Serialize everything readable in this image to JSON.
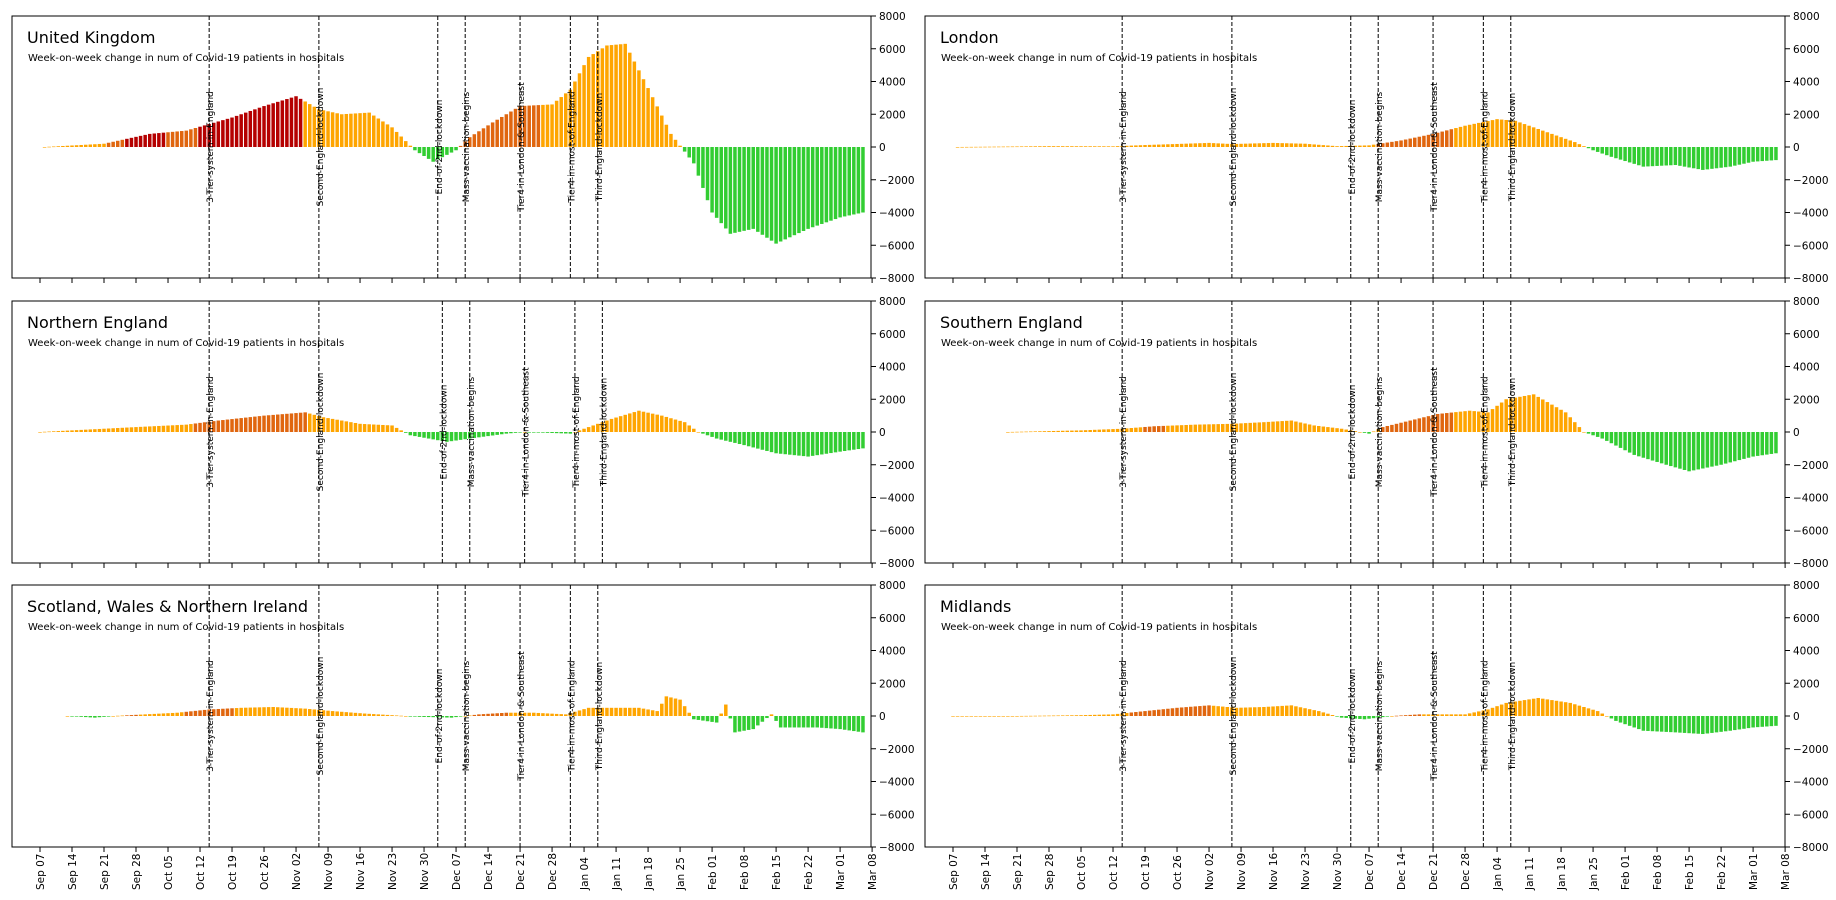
{
  "colors": {
    "rising_fast": "#E0660F",
    "rising": "#FFA500",
    "rising_peak": "#B50000",
    "falling": "#32CD32",
    "event_line": "#000000",
    "axis": "#000000"
  },
  "x_tick_labels": [
    "Sep 07",
    "Sep 14",
    "Sep 21",
    "Sep 28",
    "Oct 05",
    "Oct 12",
    "Oct 19",
    "Oct 26",
    "Nov 02",
    "Nov 09",
    "Nov 16",
    "Nov 23",
    "Nov 30",
    "Dec 07",
    "Dec 14",
    "Dec 21",
    "Dec 28",
    "Jan 04",
    "Jan 11",
    "Jan 18",
    "Jan 25",
    "Feb 01",
    "Feb 08",
    "Feb 15",
    "Feb 22",
    "Mar 01",
    "Mar 08"
  ],
  "y_tick_labels": [
    "8000",
    "6000",
    "4000",
    "2000",
    "0",
    "−2000",
    "−4000",
    "−6000",
    "−8000"
  ],
  "chart_data": [
    {
      "type": "bar",
      "title": "United Kingdom",
      "subtitle": "Week-on-week change in num of Covid-19 patients in hospitals",
      "ylim": [
        -8000,
        8000
      ],
      "x_start": "Sep 07",
      "knots": [
        [
          "Sep 08",
          0
        ],
        [
          "Sep 21",
          200
        ],
        [
          "Oct 01",
          800
        ],
        [
          "Oct 09",
          1000
        ],
        [
          "Oct 14",
          1400
        ],
        [
          "Oct 19",
          1800
        ],
        [
          "Oct 26",
          2500
        ],
        [
          "Nov 02",
          3100
        ],
        [
          "Nov 07",
          2300
        ],
        [
          "Nov 12",
          2000
        ],
        [
          "Nov 18",
          2100
        ],
        [
          "Nov 23",
          1200
        ],
        [
          "Nov 28",
          -200
        ],
        [
          "Dec 02",
          -900
        ],
        [
          "Dec 07",
          -200
        ],
        [
          "Dec 10",
          600
        ],
        [
          "Dec 15",
          1500
        ],
        [
          "Dec 21",
          2500
        ],
        [
          "Dec 28",
          2600
        ],
        [
          "Jan 01",
          3500
        ],
        [
          "Jan 05",
          5500
        ],
        [
          "Jan 09",
          6200
        ],
        [
          "Jan 13",
          6300
        ],
        [
          "Jan 18",
          3600
        ],
        [
          "Jan 23",
          800
        ],
        [
          "Jan 28",
          -1000
        ],
        [
          "Feb 01",
          -4000
        ],
        [
          "Feb 05",
          -5300
        ],
        [
          "Feb 10",
          -5000
        ],
        [
          "Feb 15",
          -5900
        ],
        [
          "Feb 22",
          -5000
        ],
        [
          "Mar 01",
          -4300
        ],
        [
          "Mar 06",
          -4000
        ]
      ],
      "events": [
        {
          "label": "3-Tier-system-in-England",
          "date": "Oct 14"
        },
        {
          "label": "Second-England-lockdown",
          "date": "Nov 07"
        },
        {
          "label": "End-of-2nd-lockdown",
          "date": "Dec 03"
        },
        {
          "label": "Mass-vaccination-begins",
          "date": "Dec 09"
        },
        {
          "label": "Tier4-in-London-&-Southeast",
          "date": "Dec 21"
        },
        {
          "label": "Tier4-in-most-of-England",
          "date": "Jan 01"
        },
        {
          "label": "Third-England-lockdown",
          "date": "Jan 07"
        }
      ]
    },
    {
      "type": "bar",
      "title": "London",
      "subtitle": "Week-on-week change in num of Covid-19 patients in hospitals",
      "ylim": [
        -8000,
        8000
      ],
      "x_start": "Sep 07",
      "knots": [
        [
          "Sep 08",
          0
        ],
        [
          "Sep 28",
          50
        ],
        [
          "Oct 12",
          40
        ],
        [
          "Oct 19",
          120
        ],
        [
          "Nov 02",
          250
        ],
        [
          "Nov 07",
          180
        ],
        [
          "Nov 16",
          250
        ],
        [
          "Nov 23",
          200
        ],
        [
          "Nov 30",
          50
        ],
        [
          "Dec 07",
          100
        ],
        [
          "Dec 14",
          400
        ],
        [
          "Dec 21",
          800
        ],
        [
          "Dec 28",
          1300
        ],
        [
          "Jan 04",
          1700
        ],
        [
          "Jan 08",
          1600
        ],
        [
          "Jan 14",
          1000
        ],
        [
          "Jan 21",
          300
        ],
        [
          "Jan 25",
          -200
        ],
        [
          "Jan 29",
          -600
        ],
        [
          "Feb 05",
          -1200
        ],
        [
          "Feb 12",
          -1100
        ],
        [
          "Feb 18",
          -1400
        ],
        [
          "Feb 24",
          -1200
        ],
        [
          "Mar 01",
          -900
        ],
        [
          "Mar 06",
          -800
        ]
      ],
      "events": [
        {
          "label": "3-Tier-system-in-England",
          "date": "Oct 14"
        },
        {
          "label": "Second-England-lockdown",
          "date": "Nov 07"
        },
        {
          "label": "End-of-2nd-lockdown",
          "date": "Dec 03"
        },
        {
          "label": "Mass-vaccination-begins",
          "date": "Dec 09"
        },
        {
          "label": "Tier4-in-London-&-Southeast",
          "date": "Dec 21"
        },
        {
          "label": "Tier4-in-most-of-England",
          "date": "Jan 01"
        },
        {
          "label": "Third-England-lockdown",
          "date": "Jan 07"
        }
      ]
    },
    {
      "type": "bar",
      "title": "Northern England",
      "subtitle": "Week-on-week change in num of Covid-19 patients in hospitals",
      "ylim": [
        -8000,
        8000
      ],
      "x_start": "Sep 07",
      "knots": [
        [
          "Sep 07",
          0
        ],
        [
          "Sep 21",
          200
        ],
        [
          "Sep 28",
          300
        ],
        [
          "Oct 09",
          450
        ],
        [
          "Oct 16",
          700
        ],
        [
          "Oct 26",
          1000
        ],
        [
          "Nov 04",
          1200
        ],
        [
          "Nov 08",
          900
        ],
        [
          "Nov 16",
          500
        ],
        [
          "Nov 23",
          400
        ],
        [
          "Nov 27",
          -200
        ],
        [
          "Dec 01",
          -400
        ],
        [
          "Dec 05",
          -600
        ],
        [
          "Dec 10",
          -400
        ],
        [
          "Dec 18",
          -100
        ],
        [
          "Dec 22",
          0
        ],
        [
          "Jan 01",
          -100
        ],
        [
          "Jan 05",
          300
        ],
        [
          "Jan 10",
          800
        ],
        [
          "Jan 16",
          1300
        ],
        [
          "Jan 21",
          1000
        ],
        [
          "Jan 26",
          600
        ],
        [
          "Jan 29",
          0
        ],
        [
          "Feb 02",
          -400
        ],
        [
          "Feb 08",
          -800
        ],
        [
          "Feb 15",
          -1300
        ],
        [
          "Feb 22",
          -1500
        ],
        [
          "Mar 01",
          -1200
        ],
        [
          "Mar 06",
          -1000
        ]
      ],
      "events": [
        {
          "label": "3-Tier-system-in-England",
          "date": "Oct 14"
        },
        {
          "label": "Second-England-lockdown",
          "date": "Nov 07"
        },
        {
          "label": "End-of-2nd-lockdown",
          "date": "Dec 04"
        },
        {
          "label": "Mass-vaccination-begins",
          "date": "Dec 10"
        },
        {
          "label": "Tier4-in-London-&-Southeast",
          "date": "Dec 22"
        },
        {
          "label": "Tier4-in-most-of-England",
          "date": "Jan 02"
        },
        {
          "label": "Third-England-lockdown",
          "date": "Jan 08"
        }
      ]
    },
    {
      "type": "bar",
      "title": "Southern England",
      "subtitle": "Week-on-week change in num of Covid-19 patients in hospitals",
      "ylim": [
        -8000,
        8000
      ],
      "x_start": "Sep 07",
      "knots": [
        [
          "Sep 19",
          0
        ],
        [
          "Oct 05",
          100
        ],
        [
          "Oct 14",
          200
        ],
        [
          "Oct 21",
          350
        ],
        [
          "Oct 30",
          450
        ],
        [
          "Nov 07",
          500
        ],
        [
          "Nov 14",
          600
        ],
        [
          "Nov 20",
          700
        ],
        [
          "Nov 25",
          400
        ],
        [
          "Dec 01",
          200
        ],
        [
          "Dec 07",
          -100
        ],
        [
          "Dec 10",
          300
        ],
        [
          "Dec 16",
          700
        ],
        [
          "Dec 22",
          1100
        ],
        [
          "Dec 29",
          1300
        ],
        [
          "Jan 02",
          1200
        ],
        [
          "Jan 06",
          2000
        ],
        [
          "Jan 12",
          2300
        ],
        [
          "Jan 19",
          1200
        ],
        [
          "Jan 23",
          0
        ],
        [
          "Jan 27",
          -400
        ],
        [
          "Feb 03",
          -1400
        ],
        [
          "Feb 10",
          -2000
        ],
        [
          "Feb 15",
          -2400
        ],
        [
          "Feb 22",
          -2000
        ],
        [
          "Mar 01",
          -1500
        ],
        [
          "Mar 06",
          -1300
        ]
      ],
      "events": [
        {
          "label": "3-Tier-system-in-England",
          "date": "Oct 14"
        },
        {
          "label": "Second-England-lockdown",
          "date": "Nov 07"
        },
        {
          "label": "End-of-2nd-lockdown",
          "date": "Dec 03"
        },
        {
          "label": "Mass-vaccination-begins",
          "date": "Dec 09"
        },
        {
          "label": "Tier4-in-London-&-Southeast",
          "date": "Dec 21"
        },
        {
          "label": "Tier4-in-most-of-England",
          "date": "Jan 01"
        },
        {
          "label": "Third-England-lockdown",
          "date": "Jan 07"
        }
      ]
    },
    {
      "type": "bar",
      "title": "Scotland, Wales & Northern Ireland",
      "subtitle": "Week-on-week change in num of Covid-19 patients in hospitals",
      "ylim": [
        -8000,
        8000
      ],
      "x_start": "Sep 07",
      "knots": [
        [
          "Sep 13",
          0
        ],
        [
          "Sep 19",
          -100
        ],
        [
          "Sep 23",
          0
        ],
        [
          "Sep 30",
          100
        ],
        [
          "Oct 07",
          200
        ],
        [
          "Oct 14",
          400
        ],
        [
          "Oct 21",
          500
        ],
        [
          "Oct 28",
          550
        ],
        [
          "Nov 04",
          450
        ],
        [
          "Nov 10",
          300
        ],
        [
          "Nov 17",
          150
        ],
        [
          "Nov 23",
          50
        ],
        [
          "Nov 29",
          -50
        ],
        [
          "Dec 06",
          -100
        ],
        [
          "Dec 12",
          100
        ],
        [
          "Dec 18",
          200
        ],
        [
          "Dec 24",
          200
        ],
        [
          "Dec 31",
          100
        ],
        [
          "Jan 05",
          500
        ],
        [
          "Jan 11",
          500
        ],
        [
          "Jan 16",
          500
        ],
        [
          "Jan 20",
          300
        ],
        [
          "Jan 22",
          1200
        ],
        [
          "Jan 25",
          1000
        ],
        [
          "Jan 28",
          -200
        ],
        [
          "Feb 02",
          -400
        ],
        [
          "Feb 04",
          700
        ],
        [
          "Feb 06",
          -1000
        ],
        [
          "Feb 10",
          -800
        ],
        [
          "Feb 14",
          100
        ],
        [
          "Feb 16",
          -700
        ],
        [
          "Feb 24",
          -700
        ],
        [
          "Mar 01",
          -800
        ],
        [
          "Mar 06",
          -1000
        ]
      ],
      "events": [
        {
          "label": "3-Tier-system-in-England",
          "date": "Oct 14"
        },
        {
          "label": "Second-England-lockdown",
          "date": "Nov 07"
        },
        {
          "label": "End-of-2nd-lockdown",
          "date": "Dec 03"
        },
        {
          "label": "Mass-vaccination-begins",
          "date": "Dec 09"
        },
        {
          "label": "Tier4-in-London-&-Southeast",
          "date": "Dec 21"
        },
        {
          "label": "Tier4-in-most-of-England",
          "date": "Jan 01"
        },
        {
          "label": "Third-England-lockdown",
          "date": "Jan 07"
        }
      ]
    },
    {
      "type": "bar",
      "title": "Midlands",
      "subtitle": "Week-on-week change in num of Covid-19 patients in hospitals",
      "ylim": [
        -8000,
        8000
      ],
      "x_start": "Sep 07",
      "knots": [
        [
          "Sep 07",
          0
        ],
        [
          "Sep 13",
          0
        ],
        [
          "Sep 21",
          0
        ],
        [
          "Oct 05",
          50
        ],
        [
          "Oct 12",
          100
        ],
        [
          "Oct 19",
          300
        ],
        [
          "Oct 26",
          500
        ],
        [
          "Nov 02",
          650
        ],
        [
          "Nov 08",
          500
        ],
        [
          "Nov 14",
          550
        ],
        [
          "Nov 20",
          650
        ],
        [
          "Nov 26",
          300
        ],
        [
          "Dec 01",
          -100
        ],
        [
          "Dec 06",
          -200
        ],
        [
          "Dec 12",
          0
        ],
        [
          "Dec 18",
          100
        ],
        [
          "Dec 28",
          100
        ],
        [
          "Jan 02",
          400
        ],
        [
          "Jan 06",
          800
        ],
        [
          "Jan 13",
          1100
        ],
        [
          "Jan 20",
          800
        ],
        [
          "Jan 26",
          300
        ],
        [
          "Jan 30",
          -300
        ],
        [
          "Feb 05",
          -900
        ],
        [
          "Feb 12",
          -1000
        ],
        [
          "Feb 18",
          -1100
        ],
        [
          "Feb 24",
          -900
        ],
        [
          "Mar 01",
          -700
        ],
        [
          "Mar 06",
          -600
        ]
      ],
      "events": [
        {
          "label": "3-Tier-system-in-England",
          "date": "Oct 14"
        },
        {
          "label": "Second-England-lockdown",
          "date": "Nov 07"
        },
        {
          "label": "End-of-2nd-lockdown",
          "date": "Dec 03"
        },
        {
          "label": "Mass-vaccination-begins",
          "date": "Dec 09"
        },
        {
          "label": "Tier4-in-London-&-Southeast",
          "date": "Dec 21"
        },
        {
          "label": "Tier4-in-most-of-England",
          "date": "Jan 01"
        },
        {
          "label": "Third-England-lockdown",
          "date": "Jan 07"
        }
      ]
    }
  ]
}
